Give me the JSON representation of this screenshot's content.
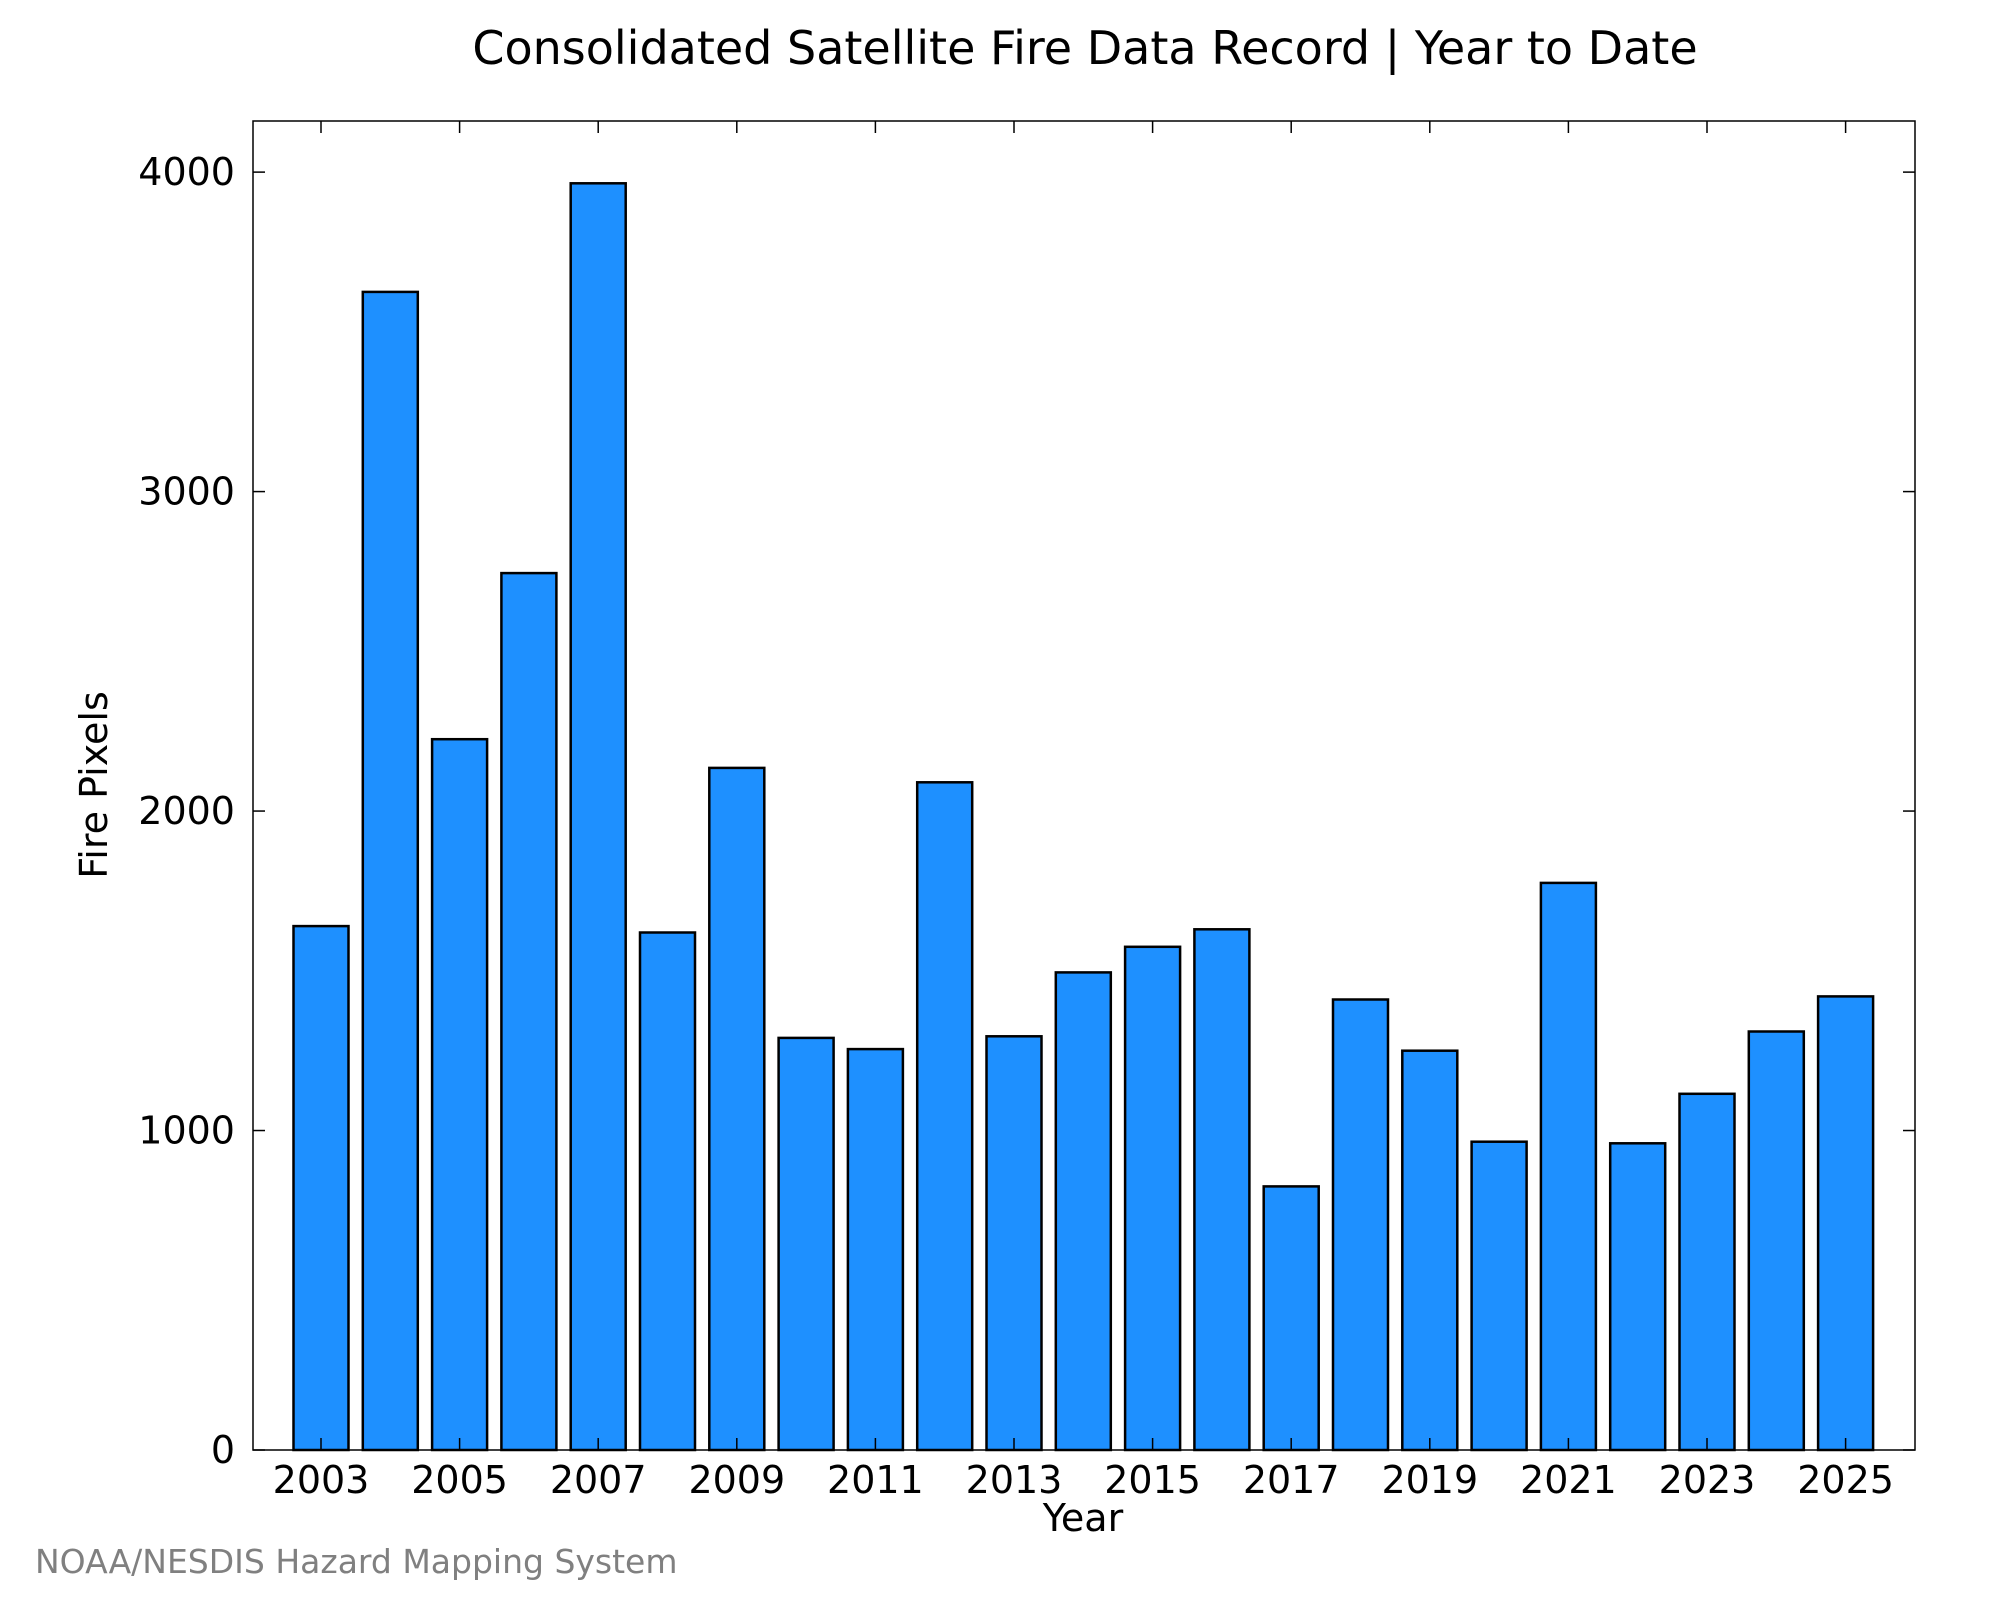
{
  "credit": "NOAA/NESDIS Hazard Mapping System",
  "colors": {
    "bar_fill": "#1e90ff",
    "bar_stroke": "#000000",
    "axis": "#000000",
    "credit": "#808080"
  },
  "chart_data": {
    "type": "bar",
    "title": "Consolidated Satellite Fire Data Record | Year to Date",
    "xlabel": "Year",
    "ylabel": "Fire Pixels",
    "ylim": [
      0,
      4160
    ],
    "yticks": [
      "0",
      "1000",
      "2000",
      "3000",
      "4000"
    ],
    "xticks": [
      "2003",
      "2005",
      "2007",
      "2009",
      "2011",
      "2013",
      "2015",
      "2017",
      "2019",
      "2021",
      "2023",
      "2025"
    ],
    "categories": [
      "2003",
      "2004",
      "2005",
      "2006",
      "2007",
      "2008",
      "2009",
      "2010",
      "2011",
      "2012",
      "2013",
      "2014",
      "2015",
      "2016",
      "2017",
      "2018",
      "2019",
      "2020",
      "2021",
      "2022",
      "2023",
      "2024",
      "2025"
    ],
    "values": [
      1640,
      3625,
      2225,
      2745,
      3965,
      1620,
      2135,
      1290,
      1255,
      2090,
      1295,
      1495,
      1575,
      1630,
      825,
      1410,
      1250,
      965,
      1775,
      960,
      1115,
      1310,
      1420
    ],
    "grid": false,
    "legend": false
  }
}
